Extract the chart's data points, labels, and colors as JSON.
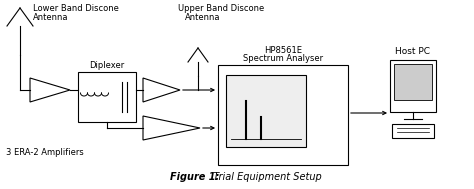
{
  "background_color": "#ffffff",
  "fig_width": 4.74,
  "fig_height": 1.89,
  "dpi": 100,
  "labels": {
    "lower_band_line1": "Lower Band Discone",
    "lower_band_line2": "Antenna",
    "upper_band_line1": "Upper Band Discone",
    "upper_band_line2": "Antenna",
    "diplexer": "Diplexer",
    "hp_line1": "HP8561E",
    "hp_line2": "Spectrum Analyser",
    "host": "Host PC",
    "era": "3 ERA-2 Amplifiers"
  },
  "caption_bold": "Figure 1:",
  "caption_italic": "  Trial Equipment Setup"
}
